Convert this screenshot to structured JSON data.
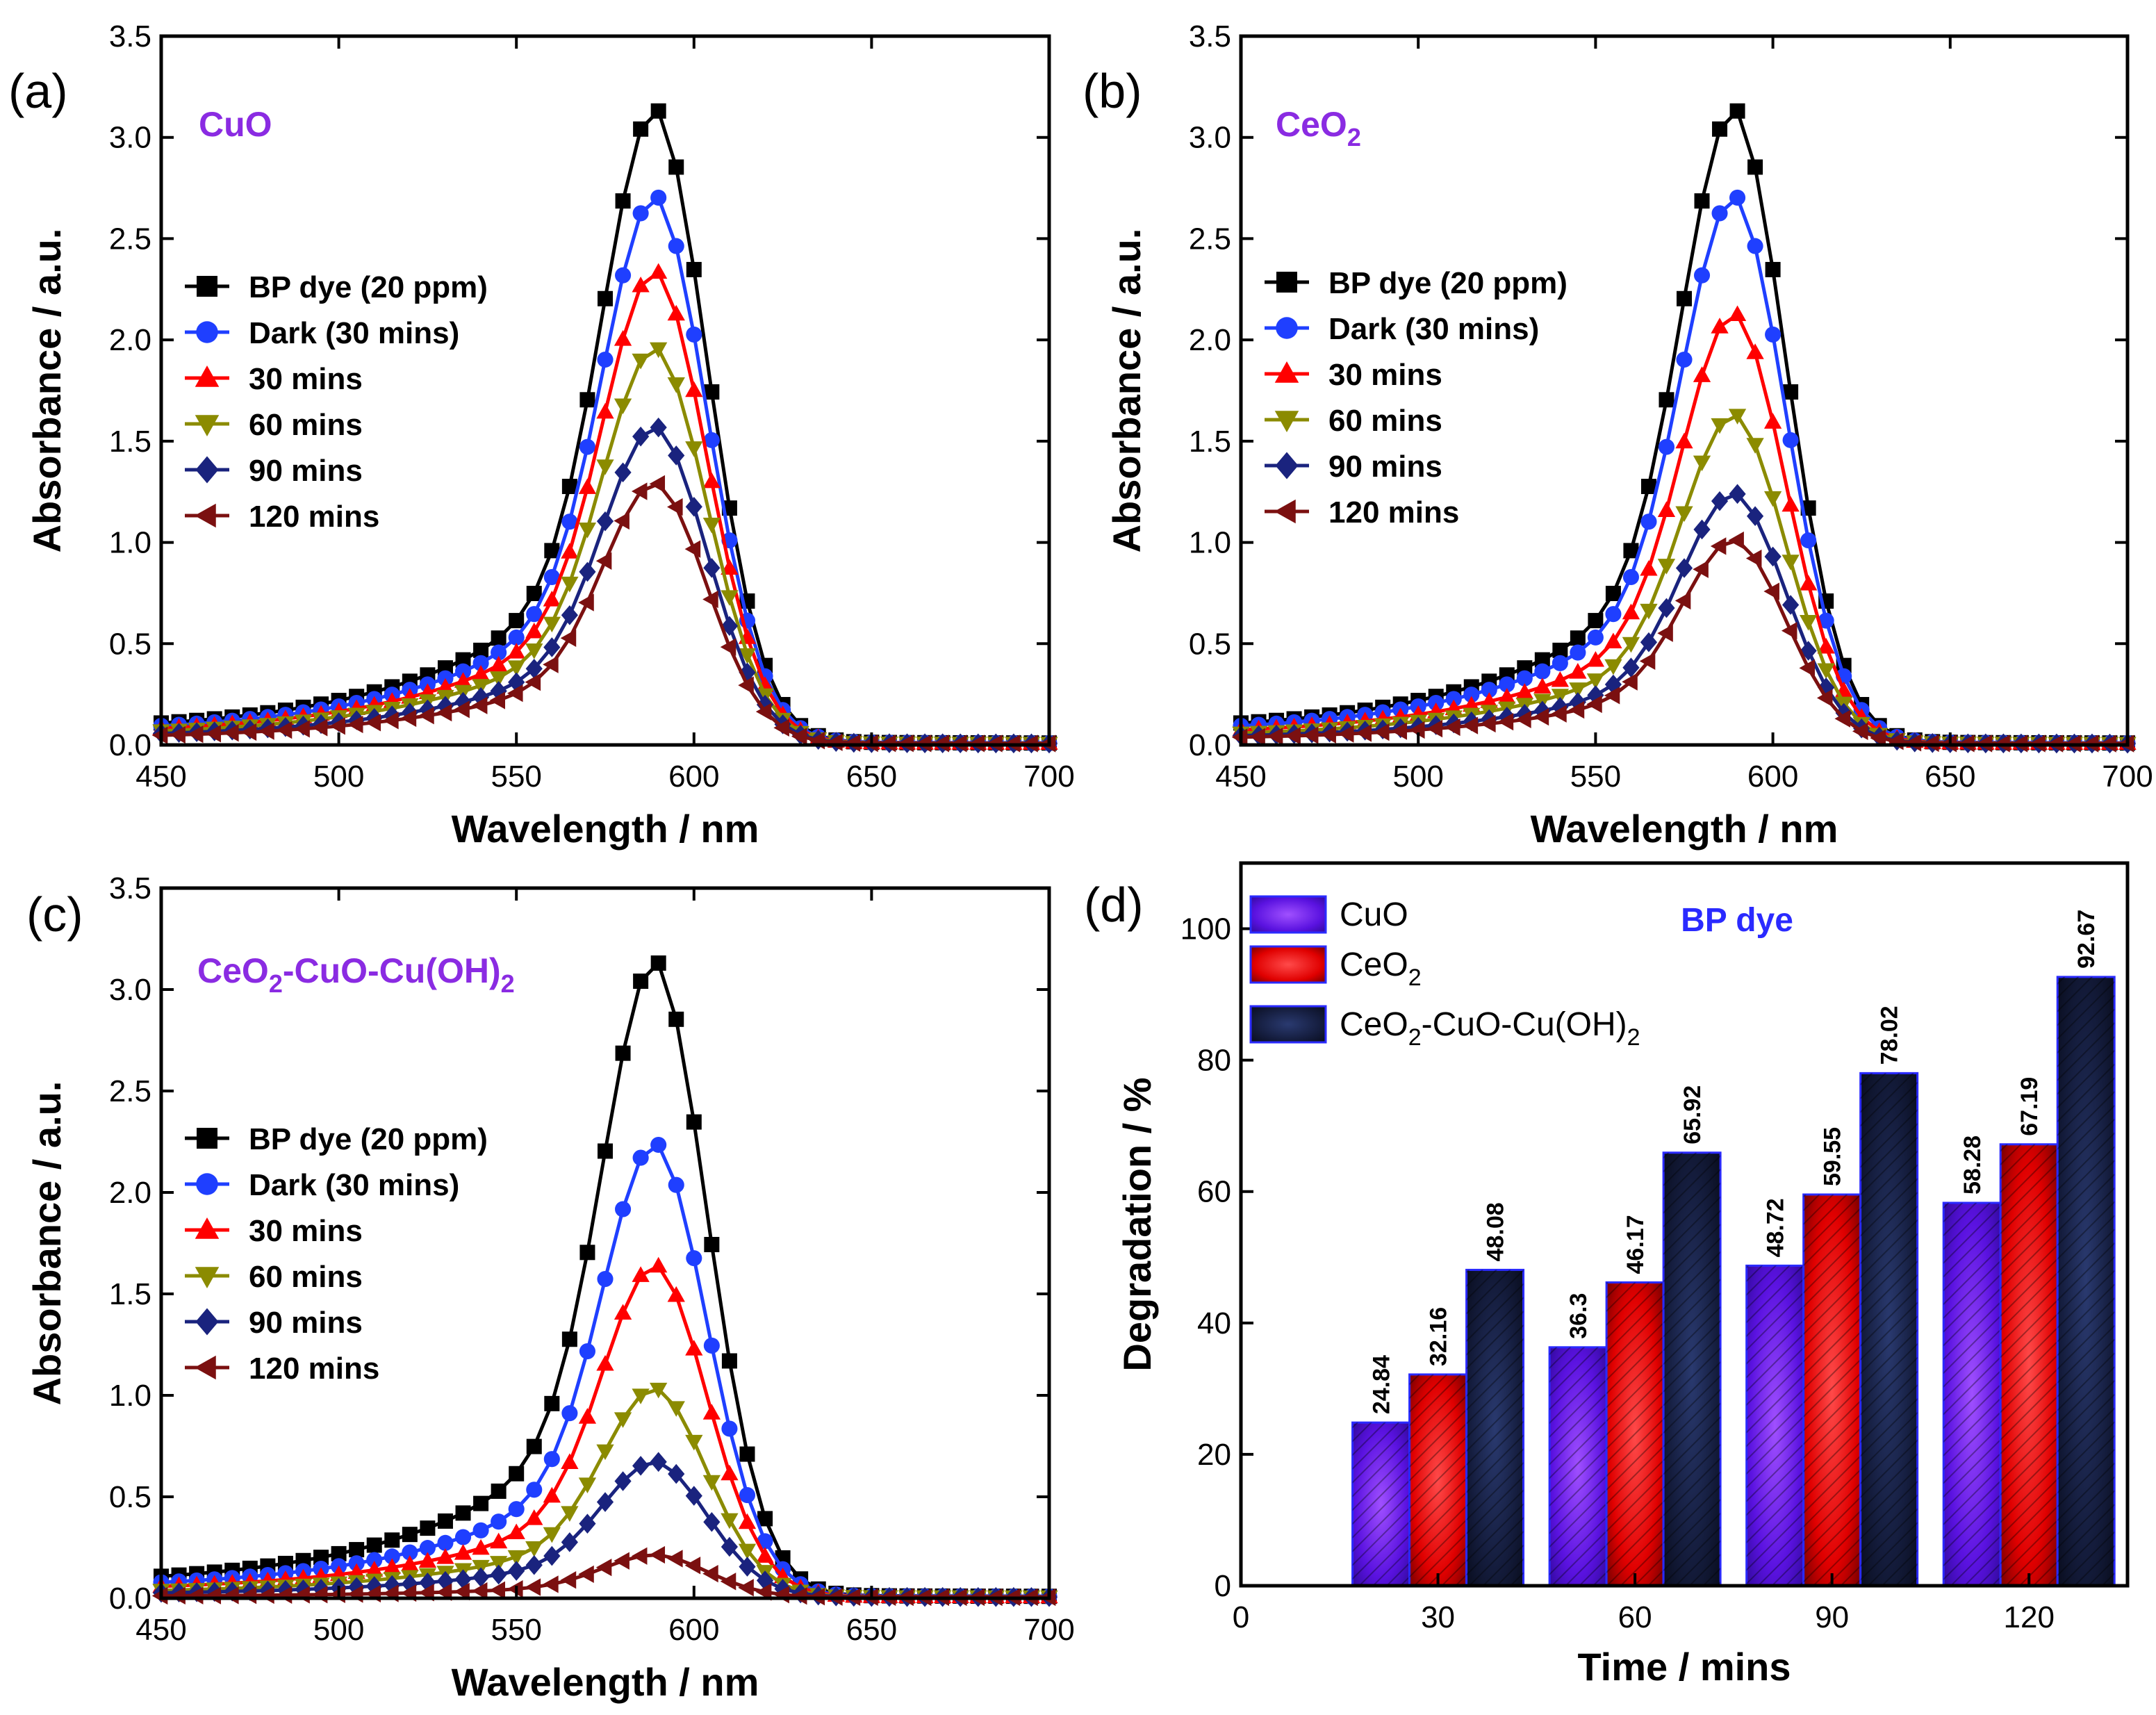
{
  "chart_data": [
    {
      "type": "line",
      "panel": "(a)",
      "sample": "CuO",
      "sample_base": "CuO",
      "sample_parts": [],
      "xlabel": "Wavelength / nm",
      "ylabel": "Absorbance / a.u.",
      "xlim": [
        450,
        700
      ],
      "ylim": [
        0.0,
        3.5
      ],
      "xticks": [
        "450",
        "500",
        "550",
        "600",
        "650",
        "700"
      ],
      "yticks": [
        "0.0",
        "0.5",
        "1.0",
        "1.5",
        "2.0",
        "2.5",
        "3.0",
        "3.5"
      ],
      "series": [
        {
          "name": "BP dye (20 ppm)",
          "marker": "square",
          "color": "#000000",
          "peak": 3.14
        },
        {
          "name": "Dark (30 mins)",
          "marker": "circle",
          "color": "#1f3fff",
          "peak": 2.71
        },
        {
          "name": "30 mins",
          "marker": "triangle-up",
          "color": "#ff0000",
          "peak": 2.34
        },
        {
          "name": "60 mins",
          "marker": "triangle-down",
          "color": "#8b8b00",
          "peak": 1.96
        },
        {
          "name": "90 mins",
          "marker": "diamond",
          "color": "#1a237e",
          "peak": 1.57
        },
        {
          "name": "120 mins",
          "marker": "triangle-left",
          "color": "#7b1010",
          "peak": 1.29
        }
      ]
    },
    {
      "type": "line",
      "panel": "(b)",
      "sample": "CeO2",
      "sample_base": "CeO",
      "sample_parts": [
        {
          "sub": "2",
          "text": ""
        }
      ],
      "xlabel": "Wavelength / nm",
      "ylabel": "Absorbance / a.u.",
      "xlim": [
        450,
        700
      ],
      "ylim": [
        0.0,
        3.5
      ],
      "xticks": [
        "450",
        "500",
        "550",
        "600",
        "650",
        "700"
      ],
      "yticks": [
        "0.0",
        "0.5",
        "1.0",
        "1.5",
        "2.0",
        "2.5",
        "3.0",
        "3.5"
      ],
      "series": [
        {
          "name": "BP dye (20 ppm)",
          "marker": "square",
          "color": "#000000",
          "peak": 3.14
        },
        {
          "name": "Dark (30 mins)",
          "marker": "circle",
          "color": "#1f3fff",
          "peak": 2.71
        },
        {
          "name": "30 mins",
          "marker": "triangle-up",
          "color": "#ff0000",
          "peak": 2.13
        },
        {
          "name": "60 mins",
          "marker": "triangle-down",
          "color": "#8b8b00",
          "peak": 1.63
        },
        {
          "name": "90 mins",
          "marker": "diamond",
          "color": "#1a237e",
          "peak": 1.24
        },
        {
          "name": "120 mins",
          "marker": "triangle-left",
          "color": "#7b1010",
          "peak": 1.01
        }
      ]
    },
    {
      "type": "line",
      "panel": "(c)",
      "sample": "CeO2-CuO-Cu(OH)2",
      "sample_base": "CeO",
      "sample_parts": [
        {
          "sub": "2",
          "text": "-CuO-Cu(OH)"
        },
        {
          "sub": "2",
          "text": ""
        }
      ],
      "xlabel": "Wavelength / nm",
      "ylabel": "Absorbance / a.u.",
      "xlim": [
        450,
        700
      ],
      "ylim": [
        0.0,
        3.5
      ],
      "xticks": [
        "450",
        "500",
        "550",
        "600",
        "650",
        "700"
      ],
      "yticks": [
        "0.0",
        "0.5",
        "1.0",
        "1.5",
        "2.0",
        "2.5",
        "3.0",
        "3.5"
      ],
      "series": [
        {
          "name": "BP dye (20 ppm)",
          "marker": "square",
          "color": "#000000",
          "peak": 3.14
        },
        {
          "name": "Dark (30 mins)",
          "marker": "circle",
          "color": "#1f3fff",
          "peak": 2.24
        },
        {
          "name": "30 mins",
          "marker": "triangle-up",
          "color": "#ff0000",
          "peak": 1.64
        },
        {
          "name": "60 mins",
          "marker": "triangle-down",
          "color": "#8b8b00",
          "peak": 1.03
        },
        {
          "name": "90 mins",
          "marker": "diamond",
          "color": "#1a237e",
          "peak": 0.67
        },
        {
          "name": "120 mins",
          "marker": "triangle-left",
          "color": "#7b1010",
          "peak": 0.21
        }
      ]
    },
    {
      "type": "bar",
      "panel": "(d)",
      "title": "BP dye",
      "xlabel": "Time / mins",
      "ylabel": "Degradation / %",
      "xlim": [
        0,
        135
      ],
      "ylim": [
        0,
        110
      ],
      "categories": [
        "30",
        "60",
        "90",
        "120"
      ],
      "category_values": [
        30,
        60,
        90,
        120
      ],
      "xticks": [
        "0",
        "30",
        "60",
        "90",
        "120"
      ],
      "yticks": [
        "0",
        "20",
        "40",
        "60",
        "80",
        "100"
      ],
      "series": [
        {
          "name": "CuO",
          "name_base": "CuO",
          "name_parts": [],
          "color": "#6a1bff",
          "values": [
            24.84,
            36.3,
            48.72,
            58.28
          ],
          "labels": [
            "24.84",
            "36.3",
            "48.72",
            "58.28"
          ]
        },
        {
          "name": "CeO2",
          "name_base": "CeO",
          "name_parts": [
            {
              "sub": "2",
              "text": ""
            }
          ],
          "color": "#ff1a1a",
          "values": [
            32.16,
            46.17,
            59.55,
            67.19
          ],
          "labels": [
            "32.16",
            "46.17",
            "59.55",
            "67.19"
          ]
        },
        {
          "name": "CeO2-CuO-Cu(OH)2",
          "name_base": "CeO",
          "name_parts": [
            {
              "sub": "2",
              "text": "-CuO-Cu(OH)"
            },
            {
              "sub": "2",
              "text": ""
            }
          ],
          "color": "#1a2a5a",
          "values": [
            48.08,
            65.92,
            78.02,
            92.67
          ],
          "labels": [
            "48.08",
            "65.92",
            "78.02",
            "92.67"
          ]
        }
      ]
    }
  ]
}
